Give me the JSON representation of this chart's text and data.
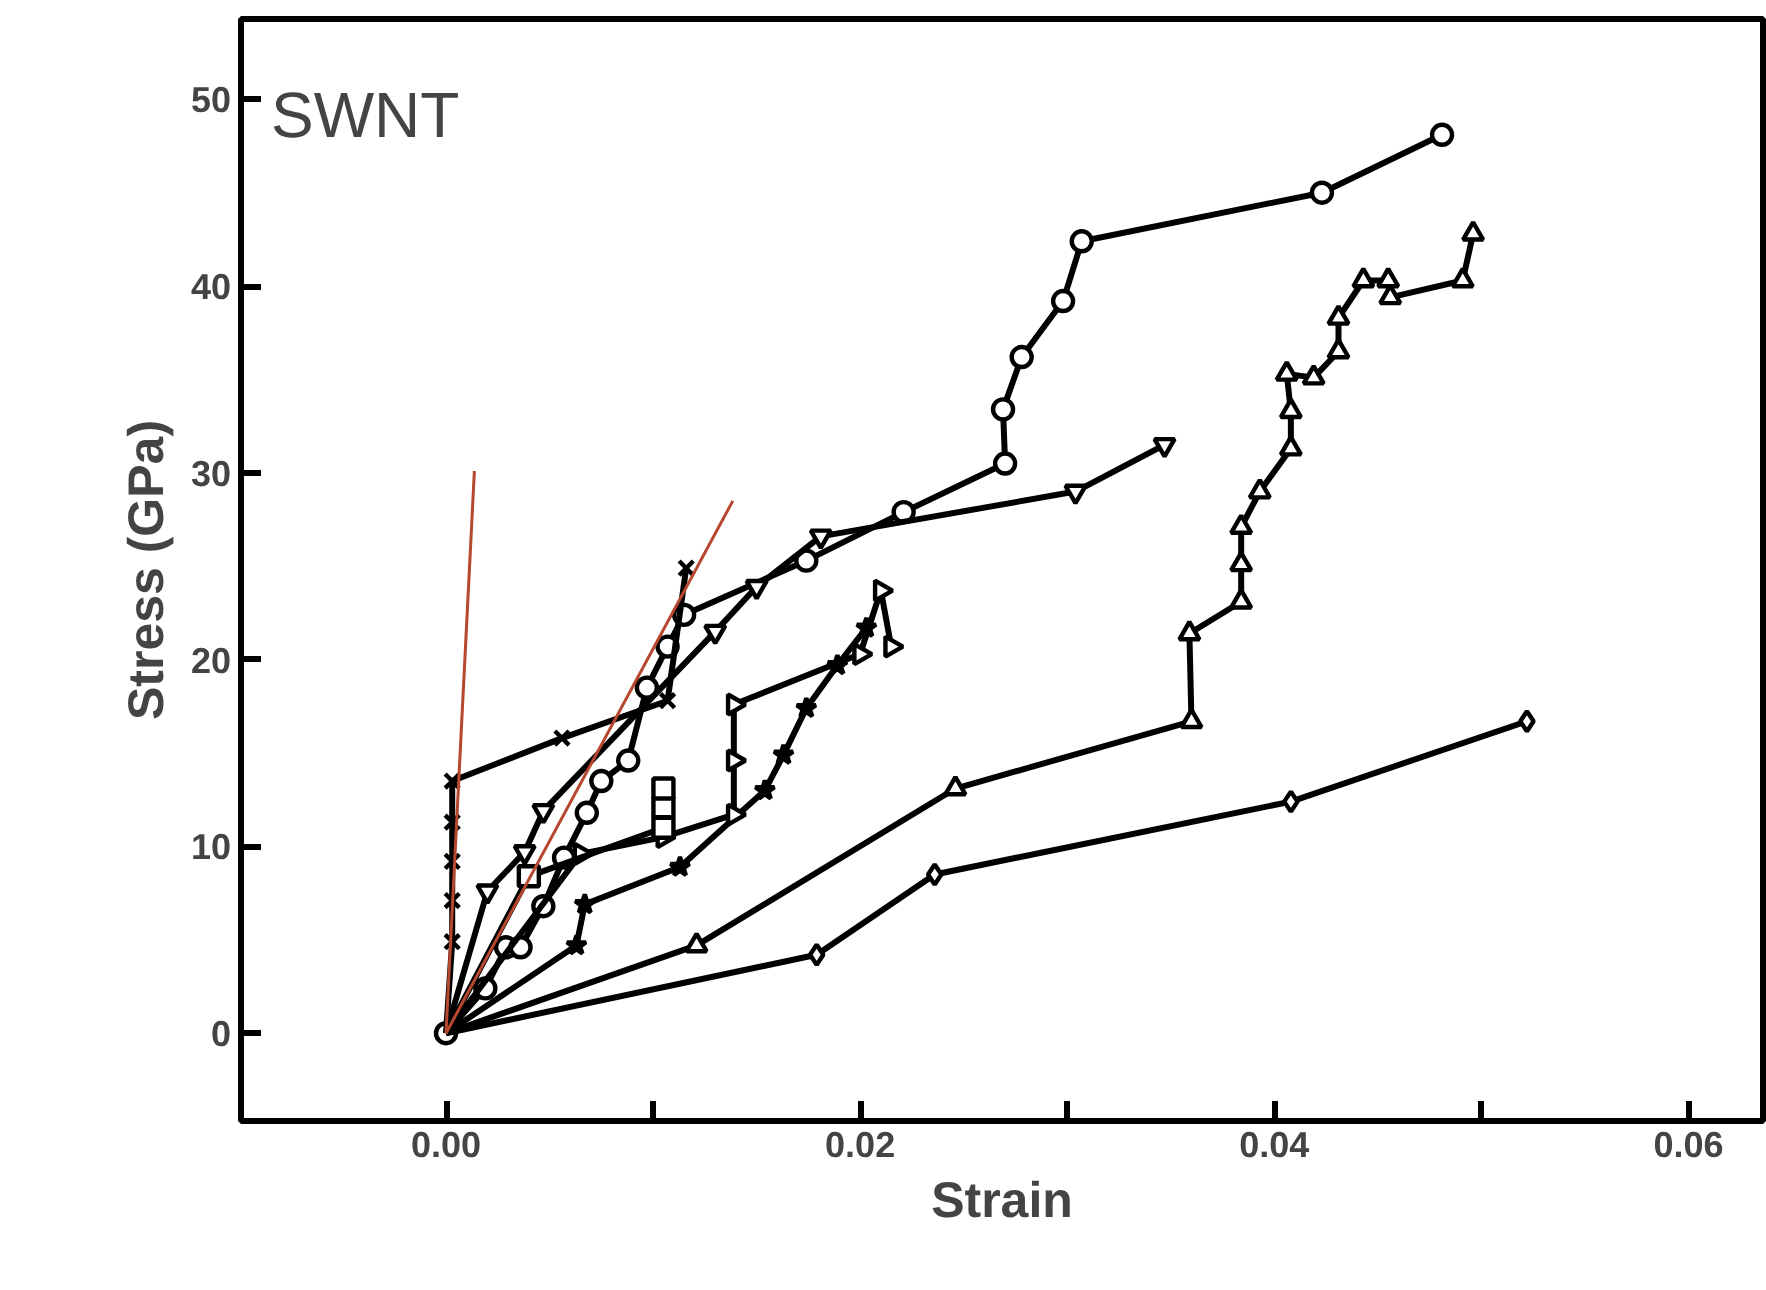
{
  "chart_data": {
    "type": "line",
    "xlabel": "Strain",
    "ylabel": "Stress (GPa)",
    "annotations": [
      "SWNT"
    ],
    "xlim": [
      -0.0099,
      0.0636
    ],
    "ylim": [
      -4.7,
      54.3
    ],
    "xticks": [
      {
        "value": 0,
        "label": "0.00"
      },
      {
        "value": 0.01,
        "label": null
      },
      {
        "value": 0.02,
        "label": "0.02"
      },
      {
        "value": 0.03,
        "label": null
      },
      {
        "value": 0.04,
        "label": "0.04"
      },
      {
        "value": 0.05,
        "label": null
      },
      {
        "value": 0.06,
        "label": "0.06"
      }
    ],
    "yticks": [
      0,
      10,
      20,
      30,
      40,
      50
    ],
    "line_style": "solid",
    "series": [
      {
        "color": "#000000",
        "marker": "circle",
        "x": [
          0,
          0.0019,
          0.0029,
          0.0036,
          0.0047,
          0.0057,
          0.0068,
          0.0075,
          0.0088,
          0.0097,
          0.0107,
          0.0115,
          0.0174,
          0.0221,
          0.027,
          0.0269,
          0.0278,
          0.0298,
          0.0307,
          0.0423,
          0.0481
        ],
        "values": [
          0,
          2.4,
          4.6,
          4.6,
          6.8,
          9.4,
          11.8,
          13.5,
          14.6,
          18.5,
          20.7,
          22.4,
          25.3,
          27.9,
          30.5,
          33.4,
          36.2,
          39.2,
          42.4,
          45.0,
          48.1
        ]
      },
      {
        "color": "#000000",
        "marker": "triangle",
        "x": [
          0,
          0.002,
          0.0038,
          0.0047,
          0.013,
          0.015,
          0.0181,
          0.0304,
          0.0347
        ],
        "values": [
          0,
          7.6,
          9.7,
          11.9,
          21.5,
          23.9,
          26.6,
          29.0,
          31.5
        ]
      },
      {
        "color": "#000000",
        "marker": "cross",
        "x": [
          0,
          0.0003,
          0.0003,
          0.0003,
          0.0003,
          0.0003,
          0.0056,
          0.0107,
          0.0116
        ],
        "values": [
          0,
          4.9,
          7.1,
          9.2,
          11.3,
          13.5,
          15.8,
          17.8,
          24.9
        ]
      },
      {
        "color": "#000000",
        "marker": "star",
        "x": [
          0,
          0.0063,
          0.0067,
          0.0113,
          0.0154,
          0.0163,
          0.0174,
          0.0189,
          0.0203
        ],
        "values": [
          0,
          4.7,
          6.9,
          8.9,
          13.0,
          14.9,
          17.4,
          19.7,
          21.7
        ]
      },
      {
        "color": "#000000",
        "marker": "triangle",
        "x": [
          0,
          0.0065,
          0.0105,
          0.0139,
          0.0139,
          0.0139,
          0.02,
          0.021,
          0.0215
        ],
        "values": [
          0,
          9.6,
          10.5,
          11.7,
          14.6,
          17.6,
          20.3,
          23.7,
          20.7
        ]
      },
      {
        "color": "#000000",
        "marker": "square",
        "x": [
          0,
          0.004,
          0.0105,
          0.0105,
          0.0105
        ],
        "values": [
          0,
          8.4,
          11.0,
          12.1,
          13.1
        ]
      },
      {
        "color": "#000000",
        "marker": "triangle",
        "x": [
          0,
          0.0121,
          0.0246,
          0.036,
          0.0359,
          0.0384,
          0.0384,
          0.0384,
          0.0393,
          0.0408,
          0.0408,
          0.0406,
          0.0419,
          0.0431,
          0.0431,
          0.0443,
          0.0455,
          0.0456,
          0.0491,
          0.0496
        ],
        "values": [
          0,
          4.7,
          13.1,
          16.7,
          21.4,
          23.1,
          25.1,
          27.1,
          29.0,
          31.3,
          33.3,
          35.3,
          35.1,
          36.5,
          38.3,
          40.3,
          40.3,
          39.4,
          40.3,
          42.8
        ]
      },
      {
        "color": "#000000",
        "marker": "diamond",
        "x": [
          0,
          0.0179,
          0.0236,
          0.0408,
          0.0522
        ],
        "values": [
          0,
          4.2,
          8.5,
          12.4,
          16.7
        ]
      },
      {
        "color": "#b5482e",
        "marker": "none",
        "x": [
          0,
          0.00137
        ],
        "values": [
          0,
          30.1
        ]
      },
      {
        "color": "#b5482e",
        "marker": "none",
        "x": [
          0,
          0.01385
        ],
        "values": [
          0,
          28.5
        ]
      }
    ]
  }
}
